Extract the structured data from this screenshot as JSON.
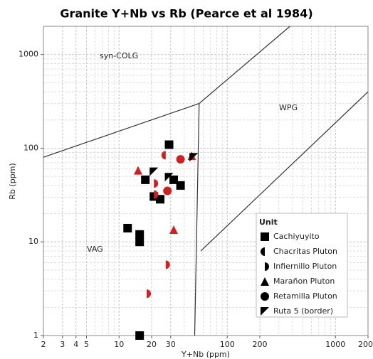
{
  "chart_data": {
    "type": "scatter",
    "title": "Granite Y+Nb vs Rb (Pearce et al 1984)",
    "x_label": "Y+Nb (ppm)",
    "y_label": "Rb (ppm)",
    "xlim": [
      2,
      2000
    ],
    "ylim": [
      1,
      2000
    ],
    "xscale": "log",
    "yscale": "log",
    "xticks": [
      2,
      3,
      4,
      5,
      10,
      20,
      30,
      100,
      200,
      1000,
      2000
    ],
    "yticks": [
      1,
      10,
      100,
      1000
    ],
    "grid": true,
    "legend_title": "Unit",
    "legend_position": "lower right",
    "legend_marker_color": "#000000",
    "boundary_color": "#333333",
    "boundaries": [
      {
        "x": [
          2,
          55,
          380
        ],
        "y": [
          80,
          300,
          2000
        ]
      },
      {
        "x": [
          55,
          50
        ],
        "y": [
          300,
          1
        ]
      },
      {
        "x": [
          57,
          2000
        ],
        "y": [
          8,
          400
        ]
      }
    ],
    "annotations": [
      "syn-COLG",
      "WPG",
      "VAG"
    ],
    "series": [
      {
        "name": "Cachiyuyito",
        "marker": "square",
        "color": "#000000",
        "x": [
          29,
          17.5,
          21,
          24,
          32,
          37,
          12,
          15.5,
          15.5,
          15.5
        ],
        "values": [
          109,
          46,
          30.5,
          28.5,
          46,
          40,
          14,
          12,
          10,
          1
        ]
      },
      {
        "name": "Chacritas Pluton",
        "marker": "half-left",
        "color": "#cc2222",
        "x": [
          27
        ],
        "values": [
          84
        ]
      },
      {
        "name": "Infiernillo Pluton",
        "marker": "half-right",
        "color": "#cc2222",
        "x": [
          27,
          18,
          21,
          21
        ],
        "values": [
          5.7,
          2.8,
          42,
          32
        ]
      },
      {
        "name": "Marañon Pluton",
        "marker": "triangle",
        "color": "#cc2222",
        "x": [
          15,
          47,
          32
        ],
        "values": [
          58,
          83,
          13.5
        ]
      },
      {
        "name": "Retamilla Pluton",
        "marker": "circle",
        "color": "#cc2222",
        "x": [
          37,
          28
        ],
        "values": [
          76,
          35
        ]
      },
      {
        "name": "Ruta 5 (border)",
        "marker": "flag",
        "color": "#000000",
        "x": [
          21,
          29,
          49
        ],
        "values": [
          56,
          49,
          80
        ]
      }
    ]
  }
}
